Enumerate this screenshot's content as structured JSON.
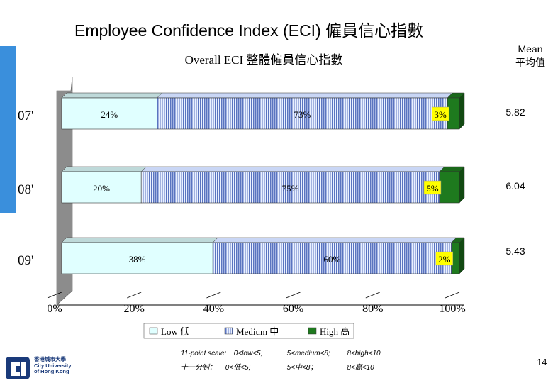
{
  "slide": {
    "title": "Employee Confidence Index (ECI) 僱員信心指數",
    "page_number": "14",
    "accent_color": "#3a8fdc"
  },
  "mean_header": {
    "line1": "Mean",
    "line2": "平均值"
  },
  "chart_data": {
    "type": "bar",
    "orientation": "horizontal",
    "stacked": true,
    "title": "Overall ECI 整體僱員信心指數",
    "categories": [
      "07'",
      "08'",
      "09'"
    ],
    "series": [
      {
        "name": "Low 低",
        "values": [
          24,
          20,
          38
        ],
        "labels": [
          "24%",
          "20%",
          "38%"
        ],
        "color": "#e0ffff"
      },
      {
        "name": "Medium 中",
        "values": [
          73,
          75,
          60
        ],
        "labels": [
          "73%",
          "75%",
          "60%"
        ],
        "color": "#a8bde6"
      },
      {
        "name": "High 高",
        "values": [
          3,
          5,
          2
        ],
        "labels": [
          "3%",
          "5%",
          "2%"
        ],
        "color": "#1e7a1e"
      }
    ],
    "means": [
      "5.82",
      "6.04",
      "5.43"
    ],
    "x_ticks": [
      "0%",
      "20%",
      "40%",
      "60%",
      "80%",
      "100%"
    ],
    "xlim": [
      0,
      100
    ],
    "legend_position": "bottom"
  },
  "scale_note": {
    "line1": [
      "11-point scale:",
      "0<low<5;",
      "5<medium<8;",
      "8<high<10"
    ],
    "line2": [
      "十一分制：",
      "0<低<5;",
      "5<中<8；",
      "8<高<10"
    ]
  },
  "logo": {
    "line1": "香港城市大學",
    "line2": "City University",
    "line3": "of Hong Kong"
  }
}
